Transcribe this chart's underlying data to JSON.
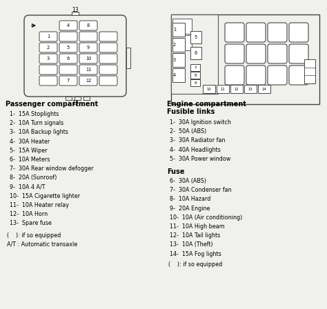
{
  "bg_color": "#f0f0ec",
  "passenger_title": "Passenger compartment",
  "passenger_items": [
    "1-  15A Stoplights",
    "2-  10A Turn signals",
    "3-  10A Backup lights",
    "4-  30A Heater",
    "5-  15A Wiper",
    "6-  10A Meters",
    "7-  30A Rear window defogger",
    "8-  20A (Sunroof)",
    "9-  10A 4 A/T",
    "10-  15A Cigarette lighter",
    "11-  10A Heater relay",
    "12-  10A Horn",
    "13-  Spare fuse"
  ],
  "passenger_footer": [
    "(    ): if so equipped",
    "A/T : Automatic transaxle"
  ],
  "engine_title1": "Engine compartment",
  "engine_title2": "Fusible links",
  "fusible_items": [
    "1-  30A Ignition switch",
    "2-  50A (ABS)",
    "3-  30A Radiator fan",
    "4-  40A Headlights",
    "5-  30A Power window"
  ],
  "fuse_title": "Fuse",
  "fuse_items": [
    "6-  30A (ABS)",
    "7-  30A Condenser fan",
    "8-  10A Hazard",
    "9-  20A Engine",
    "10-  10A (Air conditioning)",
    "11-  10A High beam",
    "12-  10A Tail lights",
    "13-  10A (Theft)",
    "14-  15A Fog lights"
  ],
  "engine_footer": [
    "(    ): if so equipped"
  ]
}
